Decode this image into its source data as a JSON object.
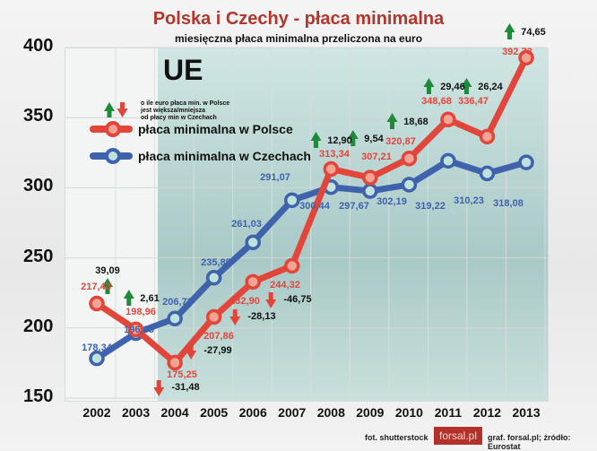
{
  "chart_data": {
    "type": "line",
    "title": "Polska i Czechy - płaca minimalna",
    "subtitle": "miesięczna płaca minimalna przeliczona na euro",
    "categories": [
      "2002",
      "2003",
      "2004",
      "2005",
      "2006",
      "2007",
      "2008",
      "2009",
      "2010",
      "2011",
      "2012",
      "2013"
    ],
    "ylim": [
      150,
      400
    ],
    "yticks": [
      "150",
      "200",
      "250",
      "300",
      "350",
      "400"
    ],
    "grid": true,
    "legend_placement": "top-left",
    "series": [
      {
        "name": "płaca minimalna w Polsce",
        "color": "#e2463a",
        "values": [
          217.43,
          198.96,
          175.25,
          207.86,
          232.9,
          244.32,
          313.34,
          307.21,
          320.87,
          348.68,
          336.47,
          392.73
        ],
        "labels": [
          "217,43",
          "198,96",
          "175,25",
          "207,86",
          "232,90",
          "244,32",
          "313,34",
          "307,21",
          "320,87",
          "348,68",
          "336,47",
          "392,73"
        ]
      },
      {
        "name": "płaca minimalna w Czechach",
        "color": "#3f62ad",
        "values": [
          178.34,
          196.35,
          206.73,
          235.85,
          261.03,
          291.07,
          300.44,
          297.67,
          302.19,
          319.22,
          310.23,
          318.08
        ],
        "labels": [
          "178,34",
          "196,35",
          "206,73",
          "235,85",
          "261,03",
          "291,07",
          "300,44",
          "297,67",
          "302,19",
          "319,22",
          "310,23",
          "318,08"
        ]
      }
    ],
    "differences": [
      {
        "label": "39,09",
        "dir": "up"
      },
      {
        "label": "2,61",
        "dir": "up"
      },
      {
        "label": "-31,48",
        "dir": "down"
      },
      {
        "label": "-27,99",
        "dir": "down"
      },
      {
        "label": "-28,13",
        "dir": "down"
      },
      {
        "label": "-46,75",
        "dir": "down"
      },
      {
        "label": "12,90",
        "dir": "up"
      },
      {
        "label": "9,54",
        "dir": "up"
      },
      {
        "label": "18,68",
        "dir": "up"
      },
      {
        "label": "29,46",
        "dir": "up"
      },
      {
        "label": "26,24",
        "dir": "up"
      },
      {
        "label": "74,65",
        "dir": "up"
      }
    ],
    "annotation": "UE",
    "arrow_note": [
      "o ile euro płaca min. w Polsce",
      "jest większa/mniejsza",
      "od płacy min w Czechach"
    ],
    "colors": {
      "up": "#1e8a3a",
      "down": "#e2463a"
    }
  },
  "footer": {
    "photo": "fot. shutterstock",
    "logo": "forsal.pl",
    "source": "graf. forsal.pl;  źródło: Eurostat"
  }
}
